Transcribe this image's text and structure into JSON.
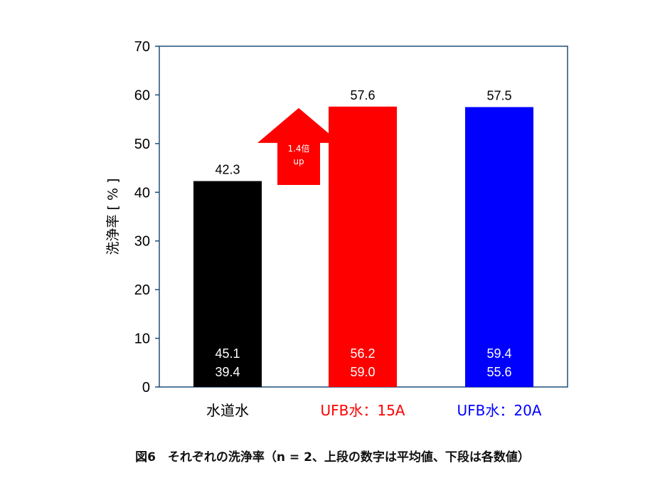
{
  "caption": "図6　それぞれの洗浄率（n = 2、上段の数字は平均値、下段は各数値）",
  "colors": {
    "axis_frame": "#1f4e79",
    "text": "#000000",
    "inner_label": "#ffffff",
    "arrow": "#ff0000"
  },
  "chart_data": {
    "type": "bar",
    "categories": [
      "水道水",
      "UFB水：15A",
      "UFB水：20A"
    ],
    "category_colors": [
      "#000000",
      "#ff0000",
      "#0000ff"
    ],
    "category_label_colors": [
      "#000000",
      "#ff0000",
      "#0000ff"
    ],
    "values": [
      42.3,
      57.6,
      57.5
    ],
    "value_labels": [
      "42.3",
      "57.6",
      "57.5"
    ],
    "individual_values": [
      [
        "45.1",
        "39.4"
      ],
      [
        "56.2",
        "59.0"
      ],
      [
        "59.4",
        "55.6"
      ]
    ],
    "ylabel": "洗浄率 [ % ]",
    "ylim": [
      0,
      70
    ],
    "yticks": [
      0,
      10,
      20,
      30,
      40,
      50,
      60,
      70
    ],
    "grid": false,
    "annotations": [
      {
        "lines": [
          "1.4倍",
          "up"
        ],
        "shape": "up-arrow",
        "color": "#ff0000",
        "value_from": 41.5,
        "value_to": 57.6
      }
    ]
  }
}
